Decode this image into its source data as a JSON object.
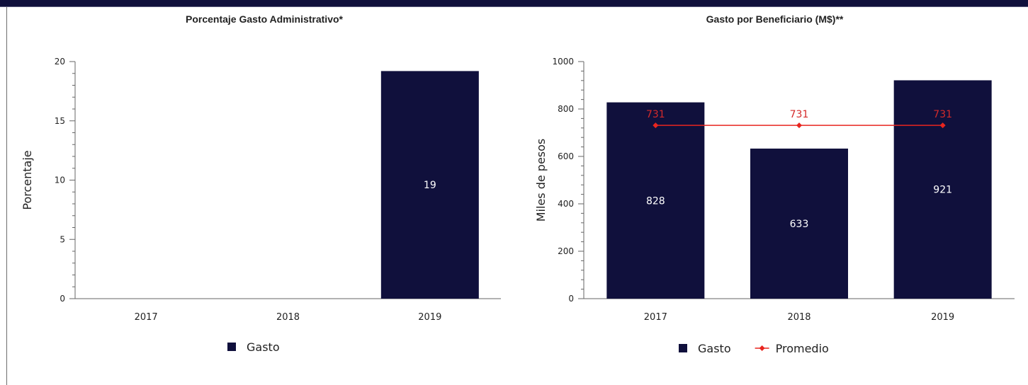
{
  "colors": {
    "bar": "#10103c",
    "average": "#e8251f",
    "axis": "#666666",
    "average_label": "#d42a2a"
  },
  "chart_data": [
    {
      "type": "bar",
      "title": "Porcentaje Gasto Administrativo*",
      "categories": [
        "2017",
        "2018",
        "2019"
      ],
      "series": [
        {
          "name": "Gasto",
          "values": [
            null,
            null,
            19.2
          ]
        }
      ],
      "data_labels": [
        "",
        "",
        "19"
      ],
      "ylabel": "Porcentaje",
      "xlabel": "",
      "ylim": [
        0,
        20
      ],
      "yticks": [
        "0",
        "5",
        "10",
        "15",
        "20"
      ],
      "legend": [
        "Gasto"
      ],
      "legend_position": "bottom",
      "grid": false
    },
    {
      "type": "bar",
      "title": "Gasto por Beneficiario (M$)**",
      "categories": [
        "2017",
        "2018",
        "2019"
      ],
      "series": [
        {
          "name": "Gasto",
          "type": "bar",
          "values": [
            828,
            633,
            921
          ]
        },
        {
          "name": "Promedio",
          "type": "line",
          "values": [
            731,
            731,
            731
          ]
        }
      ],
      "data_labels": [
        "828",
        "633",
        "921"
      ],
      "average_labels": [
        "731",
        "731",
        "731"
      ],
      "ylabel": "Miles de pesos",
      "xlabel": "",
      "ylim": [
        0,
        1000
      ],
      "yticks": [
        "0",
        "200",
        "400",
        "600",
        "800",
        "1000"
      ],
      "legend": [
        "Gasto",
        "Promedio"
      ],
      "legend_position": "bottom",
      "grid": false
    }
  ]
}
